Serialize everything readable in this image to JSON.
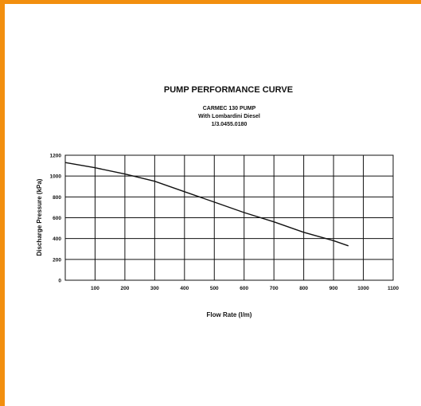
{
  "frame": {
    "border_color": "#f28f0f"
  },
  "chart_data": {
    "type": "line",
    "title": "PUMP PERFORMANCE CURVE",
    "subtitle_lines": [
      "CARMEC 130 PUMP",
      "With Lombardini Diesel",
      "1/3.0455.0180"
    ],
    "xlabel": "Flow Rate (l/m)",
    "ylabel": "Discharge Pressure (kPa)",
    "xlim": [
      0,
      1100
    ],
    "ylim": [
      0,
      1200
    ],
    "x_ticks": [
      100,
      200,
      300,
      400,
      500,
      600,
      700,
      800,
      900,
      1000,
      1100
    ],
    "x_tick_labels": [
      "100",
      "200",
      "300",
      "400",
      "500",
      "600",
      "700",
      "800",
      "900",
      "1000",
      "1100"
    ],
    "y_ticks": [
      0,
      200,
      400,
      600,
      800,
      1000,
      1200
    ],
    "y_tick_labels": [
      "0",
      "200",
      "400",
      "600",
      "800",
      "1000",
      "1200"
    ],
    "grid": true,
    "series": [
      {
        "x": [
          0,
          100,
          200,
          300,
          400,
          500,
          600,
          700,
          800,
          900,
          950
        ],
        "values": [
          1130,
          1080,
          1020,
          950,
          850,
          750,
          650,
          560,
          460,
          380,
          330
        ]
      }
    ]
  }
}
